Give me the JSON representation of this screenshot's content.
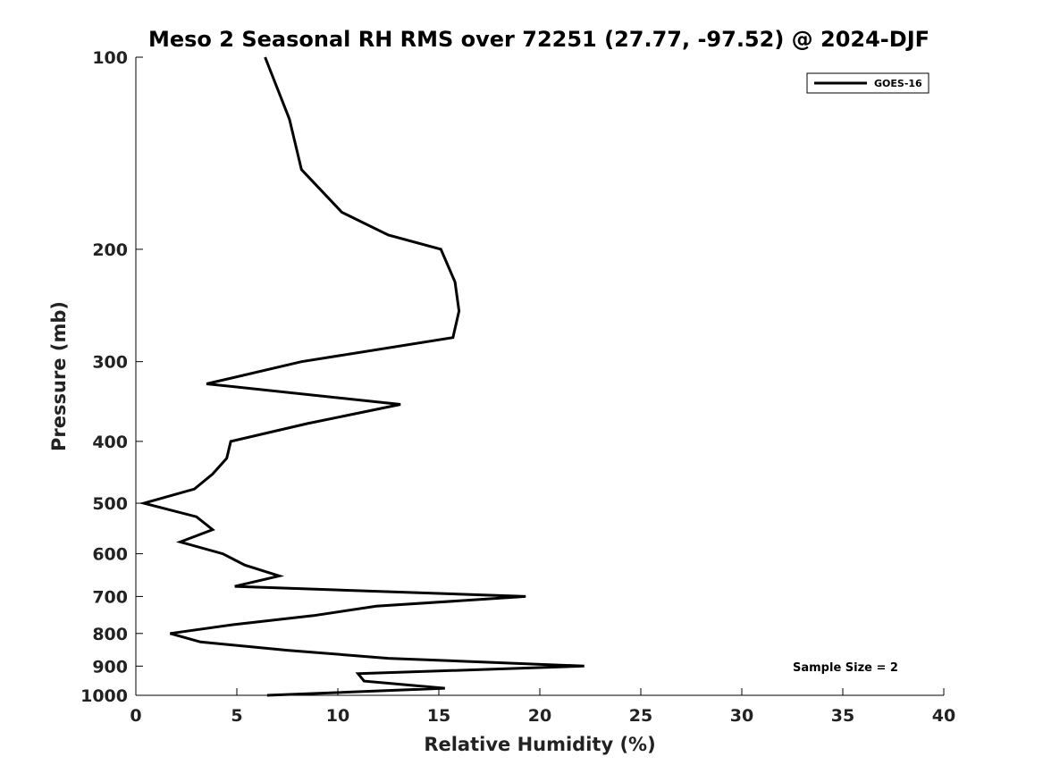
{
  "chart_data": {
    "type": "line",
    "title": "Meso 2 Seasonal RH RMS over 72251 (27.77, -97.52) @ 2024-DJF",
    "xlabel": "Relative Humidity (%)",
    "ylabel": "Pressure (mb)",
    "xlim": [
      0,
      40
    ],
    "ylim": [
      100,
      1000
    ],
    "y_scale": "log",
    "y_reversed": true,
    "x_ticks": [
      "0",
      "5",
      "10",
      "15",
      "20",
      "25",
      "30",
      "35",
      "40"
    ],
    "y_ticks": [
      "100",
      "200",
      "300",
      "400",
      "500",
      "600",
      "700",
      "800",
      "900",
      "1000"
    ],
    "grid": false,
    "legend_position": "top-right",
    "annotation": "Sample Size = 2",
    "series": [
      {
        "name": "GOES-16",
        "color": "#000000",
        "points": [
          {
            "p": 100,
            "x": 6.4
          },
          {
            "p": 125,
            "x": 7.6
          },
          {
            "p": 150,
            "x": 8.2
          },
          {
            "p": 175,
            "x": 10.2
          },
          {
            "p": 190,
            "x": 12.5
          },
          {
            "p": 200,
            "x": 15.1
          },
          {
            "p": 225,
            "x": 15.8
          },
          {
            "p": 250,
            "x": 16.0
          },
          {
            "p": 275,
            "x": 15.7
          },
          {
            "p": 300,
            "x": 8.2
          },
          {
            "p": 325,
            "x": 3.5
          },
          {
            "p": 350,
            "x": 13.1
          },
          {
            "p": 375,
            "x": 8.5
          },
          {
            "p": 400,
            "x": 4.7
          },
          {
            "p": 425,
            "x": 4.5
          },
          {
            "p": 450,
            "x": 3.8
          },
          {
            "p": 475,
            "x": 2.9
          },
          {
            "p": 500,
            "x": 0.4
          },
          {
            "p": 525,
            "x": 3.0
          },
          {
            "p": 550,
            "x": 3.8
          },
          {
            "p": 575,
            "x": 2.2
          },
          {
            "p": 600,
            "x": 4.3
          },
          {
            "p": 625,
            "x": 5.4
          },
          {
            "p": 650,
            "x": 7.1
          },
          {
            "p": 675,
            "x": 4.9
          },
          {
            "p": 700,
            "x": 19.3
          },
          {
            "p": 725,
            "x": 11.9
          },
          {
            "p": 750,
            "x": 8.8
          },
          {
            "p": 775,
            "x": 4.8
          },
          {
            "p": 800,
            "x": 1.7
          },
          {
            "p": 825,
            "x": 3.2
          },
          {
            "p": 850,
            "x": 7.5
          },
          {
            "p": 875,
            "x": 12.5
          },
          {
            "p": 900,
            "x": 22.2
          },
          {
            "p": 925,
            "x": 11.0
          },
          {
            "p": 950,
            "x": 11.3
          },
          {
            "p": 975,
            "x": 15.3
          },
          {
            "p": 1000,
            "x": 6.5
          }
        ]
      }
    ]
  }
}
